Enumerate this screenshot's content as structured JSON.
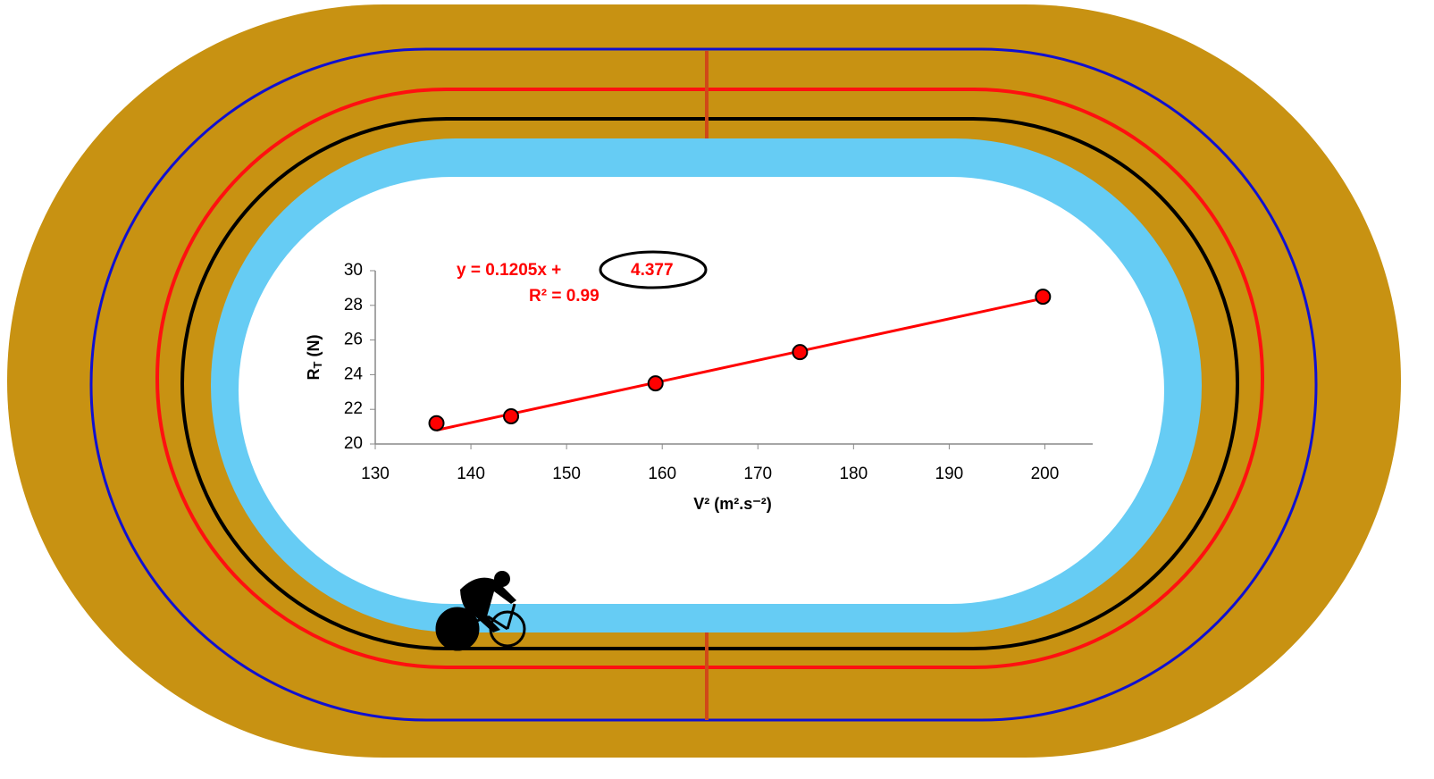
{
  "chart_data": {
    "type": "scatter",
    "annotations": [
      "y =  0.1205x  +",
      "4.377",
      "R² = 0.99"
    ],
    "xlabel": "V² (m².s⁻²)",
    "ylabel_parts": [
      "R",
      "T",
      " (N)"
    ],
    "series": [
      {
        "color": "#ff0000",
        "x": [
          136.4,
          144.2,
          159.3,
          174.4,
          199.8
        ],
        "values": [
          21.2,
          21.6,
          23.5,
          25.3,
          28.5
        ]
      }
    ],
    "trendline": {
      "color": "#ff0000",
      "x": [
        136.4,
        199.8
      ],
      "values": [
        20.8,
        28.4
      ]
    },
    "xlim": [
      130,
      205
    ],
    "xticks": [
      130,
      140,
      150,
      160,
      170,
      180,
      190,
      200
    ],
    "ylim": [
      20,
      30
    ],
    "yticks": [
      20,
      22,
      24,
      26,
      28,
      30
    ]
  }
}
